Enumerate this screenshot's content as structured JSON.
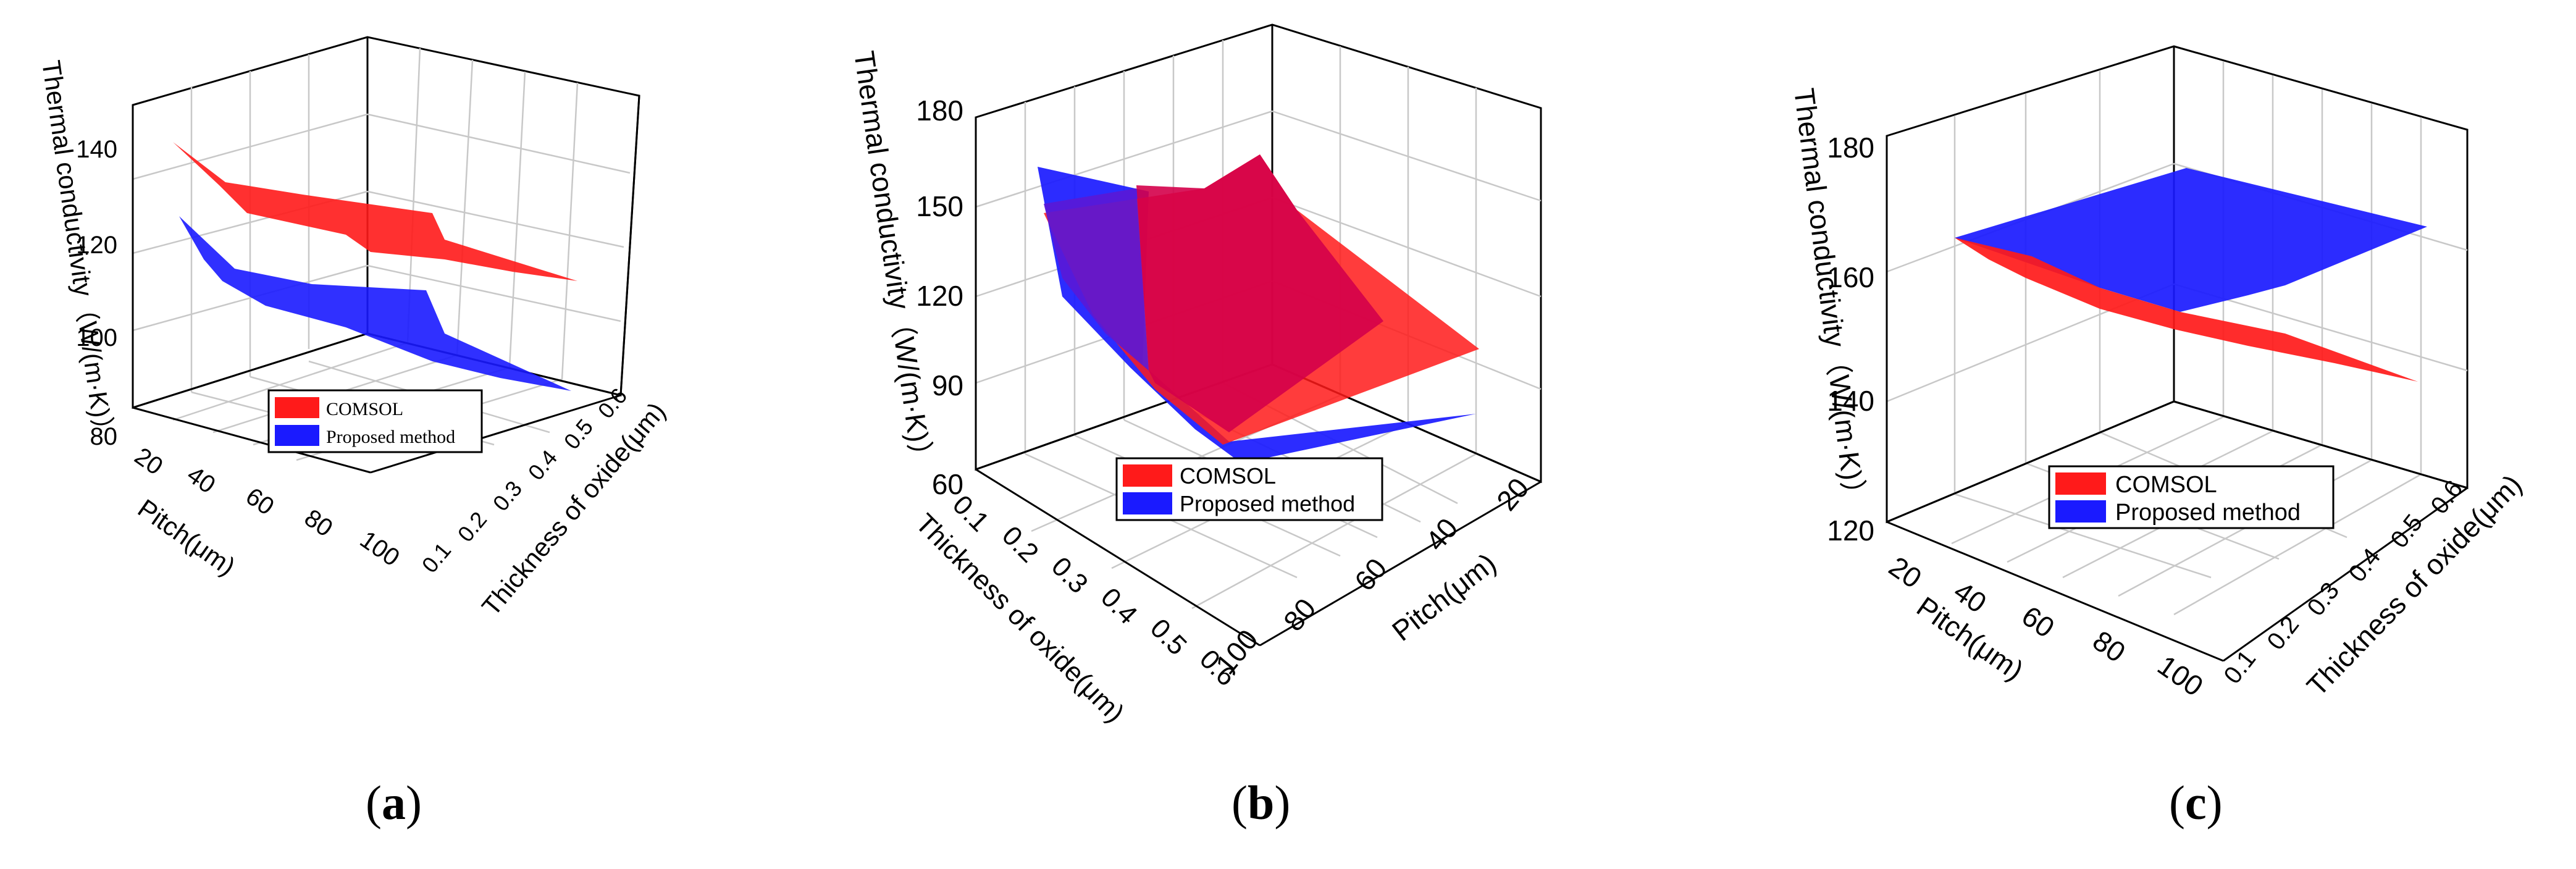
{
  "colors": {
    "comsol": "#ff1a1a",
    "proposed": "#1a1aff",
    "overlap": "#d4004a",
    "axis": "#000000",
    "grid": "#c8c8c8"
  },
  "chart_data": [
    {
      "panel": "a",
      "caption_open": "(",
      "caption_letter": "a",
      "caption_close": ")",
      "type": "surface3d",
      "zlabel": "Thermal conductivity（W/(m·K)）",
      "xlabel": "Pitch(μm)",
      "ylabel": "Thickness of oxide(μm)",
      "zlim": [
        80,
        150
      ],
      "z_ticks": [
        "80",
        "100",
        "120",
        "140"
      ],
      "x_ticks": [
        "20",
        "40",
        "60",
        "80",
        "100"
      ],
      "y_ticks": [
        "0.1",
        "0.2",
        "0.3",
        "0.4",
        "0.5",
        "0.6"
      ],
      "legend": [
        "COMSOL",
        "Proposed method"
      ],
      "series": [
        {
          "name": "COMSOL",
          "values_at_thickness_0.1": [
            141,
            136,
            135,
            133,
            132
          ],
          "values_at_thickness_0.6": [
            135,
            131,
            127,
            122,
            118
          ]
        },
        {
          "name": "Proposed method",
          "values_at_thickness_0.1": [
            123,
            116,
            114,
            113,
            112
          ],
          "values_at_thickness_0.6": [
            109,
            104,
            100,
            96,
            92
          ]
        }
      ]
    },
    {
      "panel": "b",
      "caption_open": "(",
      "caption_letter": "b",
      "caption_close": ")",
      "type": "surface3d",
      "zlabel": "Thermal conductivity（W/(m·K)）",
      "xlabel": "Thickness of oxide(μm)",
      "ylabel": "Pitch(μm)",
      "zlim": [
        60,
        180
      ],
      "z_ticks": [
        "60",
        "90",
        "120",
        "150",
        "180"
      ],
      "x_ticks": [
        "0.1",
        "0.2",
        "0.3",
        "0.4",
        "0.5",
        "0.6"
      ],
      "y_ticks": [
        "20",
        "40",
        "60",
        "80",
        "100"
      ],
      "legend": [
        "COMSOL",
        "Proposed method"
      ],
      "series": [
        {
          "name": "COMSOL",
          "corners": {
            "t0.1_p20": 150,
            "t0.6_p20": 165,
            "t0.1_p100": 118,
            "t0.6_p100": 100
          }
        },
        {
          "name": "Proposed method",
          "corners": {
            "t0.1_p20": 162,
            "t0.6_p20": 130,
            "t0.1_p100": 95,
            "t0.6_p100": 90
          }
        }
      ]
    },
    {
      "panel": "c",
      "caption_open": "(",
      "caption_letter": "c",
      "caption_close": ")",
      "type": "surface3d",
      "zlabel": "Thermal conductivity（W/(m·K)）",
      "xlabel": "Pitch(μm)",
      "ylabel": "Thickness of oxide(μm)",
      "zlim": [
        120,
        180
      ],
      "z_ticks": [
        "120",
        "140",
        "160",
        "180"
      ],
      "x_ticks": [
        "20",
        "40",
        "60",
        "80",
        "100"
      ],
      "y_ticks": [
        "0.1",
        "0.2",
        "0.3",
        "0.4",
        "0.5",
        "0.6"
      ],
      "legend": [
        "COMSOL",
        "Proposed method"
      ],
      "series": [
        {
          "name": "COMSOL",
          "values_at_thickness_0.1": [
            166,
            163,
            160,
            157,
            155
          ],
          "values_at_thickness_0.6": [
            165,
            161,
            157,
            153,
            149
          ]
        },
        {
          "name": "Proposed method",
          "values_at_thickness_0.1": [
            167,
            168,
            169,
            170,
            170
          ],
          "values_at_thickness_0.6": [
            166,
            167,
            168,
            169,
            170
          ]
        }
      ]
    }
  ]
}
